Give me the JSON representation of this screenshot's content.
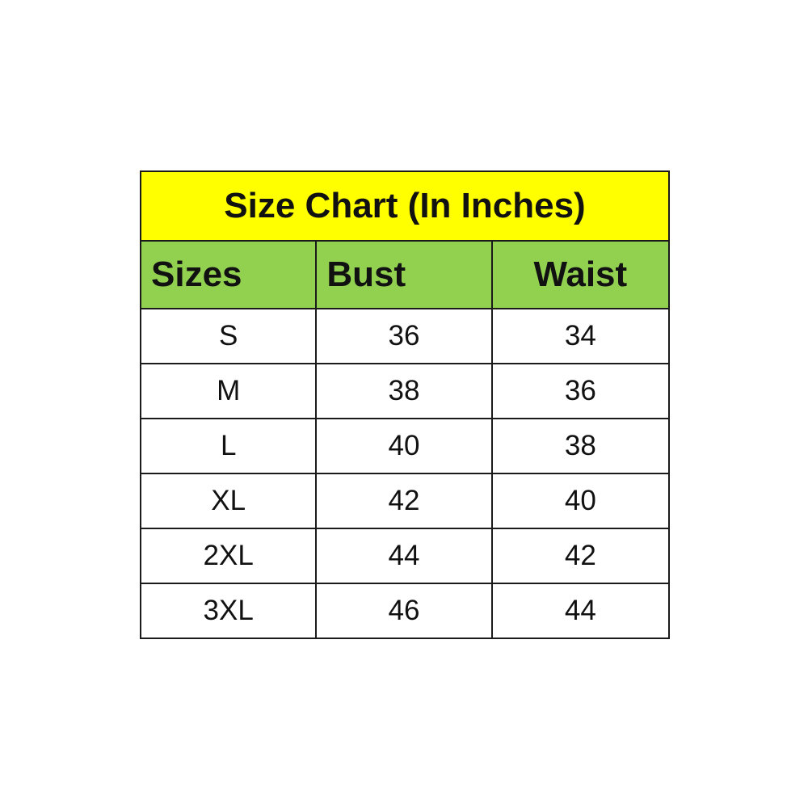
{
  "chart_data": {
    "type": "table",
    "title": "Size Chart (In Inches)",
    "columns": [
      "Sizes",
      "Bust",
      "Waist"
    ],
    "rows": [
      [
        "S",
        "36",
        "34"
      ],
      [
        "M",
        "38",
        "36"
      ],
      [
        "L",
        "40",
        "38"
      ],
      [
        "XL",
        "42",
        "40"
      ],
      [
        "2XL",
        "44",
        "42"
      ],
      [
        "3XL",
        "46",
        "44"
      ]
    ],
    "colors": {
      "title_bg": "#FFFF00",
      "header_bg": "#92D050",
      "border": "#1a1a1a"
    }
  }
}
